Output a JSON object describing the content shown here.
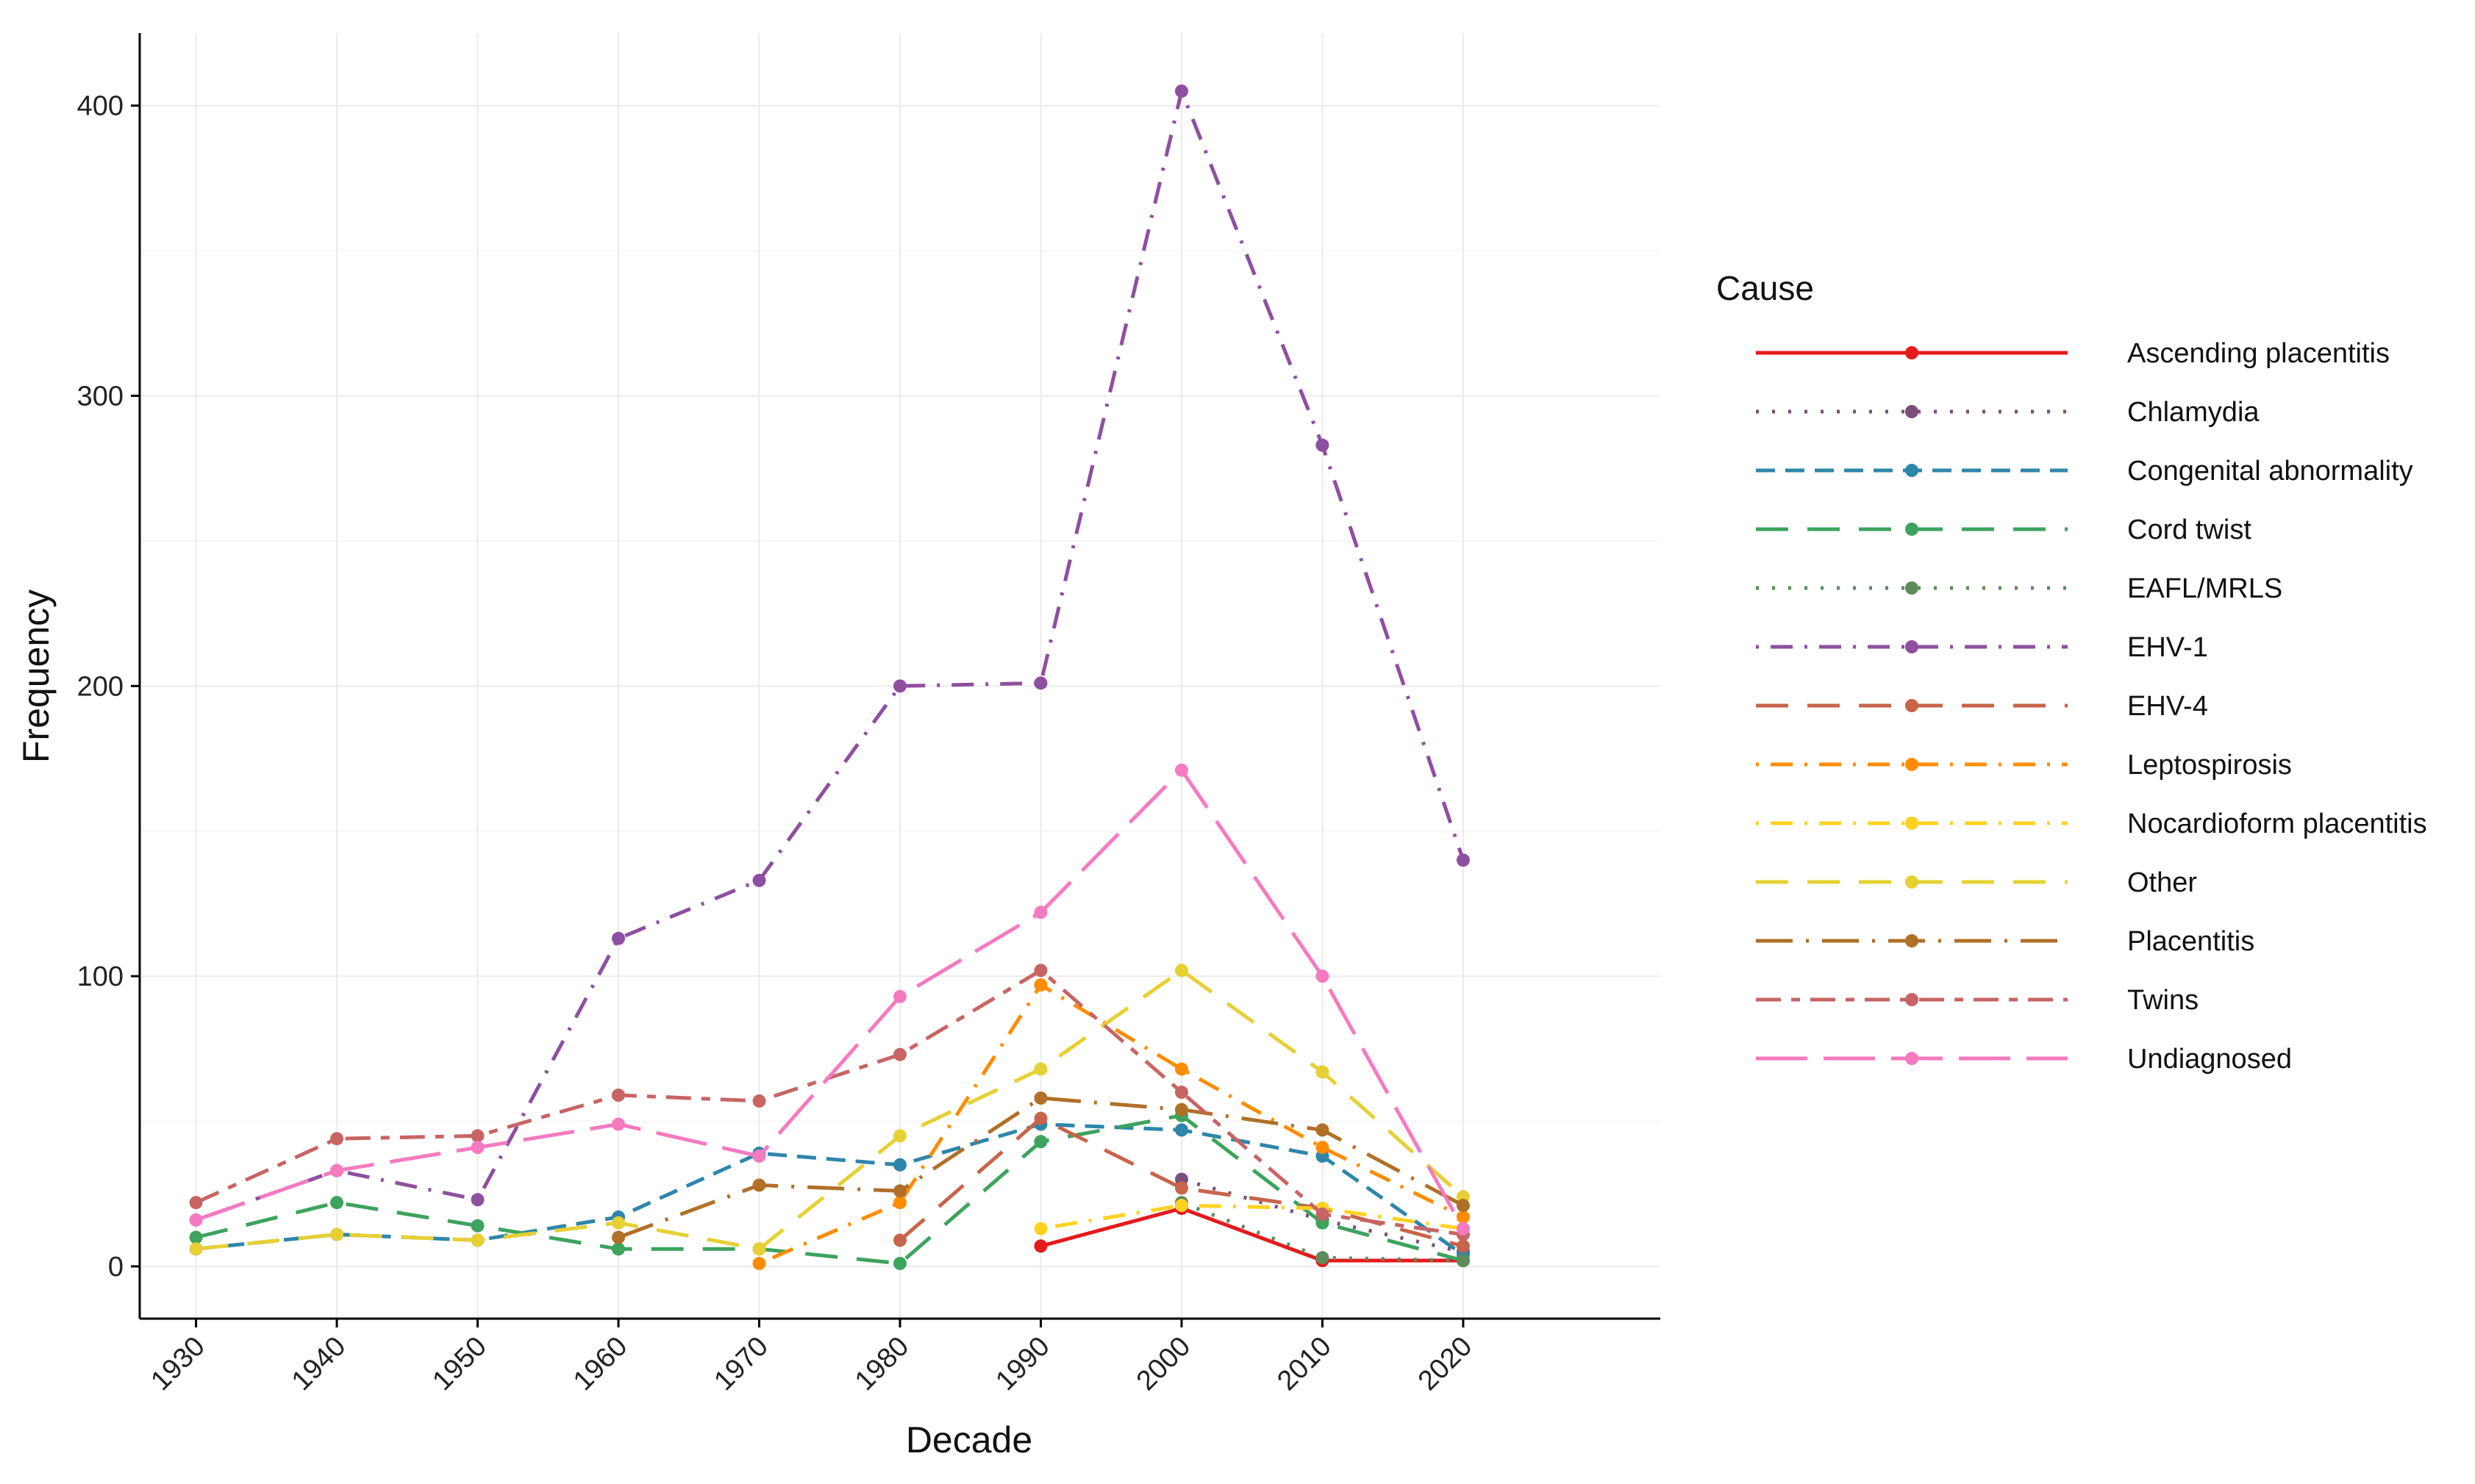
{
  "chart_data": {
    "type": "line",
    "title": "",
    "xlabel": "Decade",
    "ylabel": "Frequency",
    "x": [
      1930,
      1940,
      1950,
      1960,
      1970,
      1980,
      1990,
      2000,
      2010,
      2020
    ],
    "x_tick_labels": [
      "1930",
      "1940",
      "1950",
      "1960",
      "1970",
      "1980",
      "1990",
      "2000",
      "2010",
      "2020"
    ],
    "xlim": [
      1926,
      2034
    ],
    "ylim": [
      -18,
      425
    ],
    "y_ticks": [
      0,
      100,
      200,
      300,
      400
    ],
    "y_tick_labels": [
      "0",
      "100",
      "200",
      "300",
      "400"
    ],
    "grid": true,
    "legend": {
      "title": "Cause",
      "position": "right"
    },
    "series": [
      {
        "name": "Ascending placentitis",
        "color": "#e41a1c",
        "dash": "solid",
        "values": [
          null,
          null,
          null,
          null,
          null,
          null,
          7,
          20,
          2,
          2
        ]
      },
      {
        "name": "Chlamydia",
        "color": "#7b4e7c",
        "dash": "dotted",
        "values": [
          null,
          null,
          null,
          null,
          null,
          null,
          null,
          30,
          16,
          5
        ]
      },
      {
        "name": "Congenital abnormality",
        "color": "#2e86ab",
        "dash": "dashed",
        "values": [
          6,
          11,
          9,
          17,
          39,
          35,
          49,
          47,
          38,
          4
        ]
      },
      {
        "name": "Cord twist",
        "color": "#3da35d",
        "dash": "longdash",
        "values": [
          10,
          22,
          14,
          6,
          6,
          1,
          43,
          52,
          15,
          2
        ]
      },
      {
        "name": "EAFL/MRLS",
        "color": "#5b8c5a",
        "dash": "dotted",
        "values": [
          null,
          null,
          null,
          null,
          null,
          null,
          null,
          22,
          3,
          2
        ]
      },
      {
        "name": "EHV-1",
        "color": "#8e4fa0",
        "dash": "dotdash",
        "values": [
          16,
          33,
          23,
          113,
          133,
          200,
          201,
          405,
          283,
          140
        ]
      },
      {
        "name": "EHV-4",
        "color": "#c8644a",
        "dash": "longdash",
        "values": [
          null,
          null,
          null,
          null,
          null,
          9,
          51,
          27,
          20,
          7
        ]
      },
      {
        "name": "Leptospirosis",
        "color": "#ff8c00",
        "dash": "dotdash",
        "values": [
          null,
          null,
          null,
          null,
          1,
          22,
          97,
          68,
          41,
          17
        ]
      },
      {
        "name": "Nocardioform placentitis",
        "color": "#ffd21f",
        "dash": "dotdash",
        "values": [
          null,
          null,
          null,
          null,
          null,
          null,
          13,
          21,
          20,
          13
        ]
      },
      {
        "name": "Other",
        "color": "#e6d033",
        "dash": "longdash",
        "values": [
          6,
          11,
          9,
          15,
          6,
          45,
          68,
          102,
          67,
          24
        ]
      },
      {
        "name": "Placentitis",
        "color": "#b07028",
        "dash": "longdashdot",
        "values": [
          null,
          null,
          null,
          10,
          28,
          26,
          58,
          54,
          47,
          21
        ]
      },
      {
        "name": "Twins",
        "color": "#c86464",
        "dash": "twodash",
        "values": [
          22,
          44,
          45,
          59,
          57,
          73,
          102,
          60,
          18,
          11
        ]
      },
      {
        "name": "Undiagnosed",
        "color": "#f57ac0",
        "dash": "verylong",
        "values": [
          16,
          33,
          41,
          49,
          38,
          93,
          122,
          171,
          100,
          13
        ]
      }
    ]
  }
}
